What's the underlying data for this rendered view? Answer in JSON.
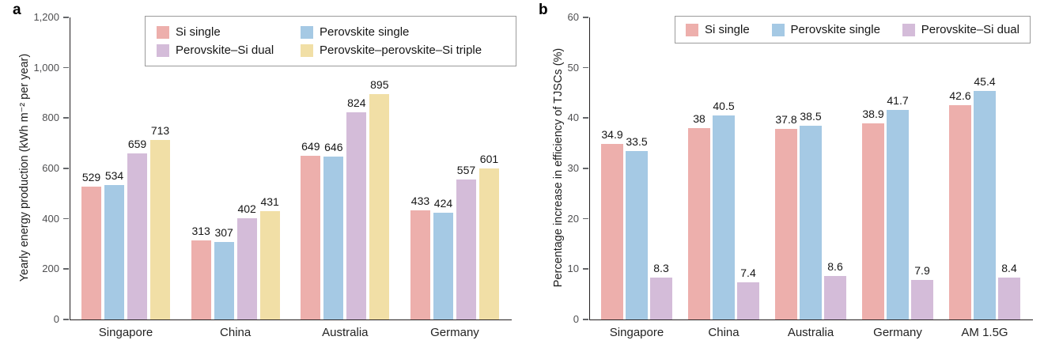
{
  "figure": {
    "panels": [
      {
        "letter": "a"
      },
      {
        "letter": "b"
      }
    ]
  },
  "chart_data": [
    {
      "type": "bar",
      "panel": "a",
      "title": "",
      "ylabel": "Yearly energy production (kWh m⁻² per year)",
      "xlabel": "",
      "ylim": [
        0,
        1200
      ],
      "yticks": [
        "0",
        "200",
        "400",
        "600",
        "800",
        "1,000",
        "1,200"
      ],
      "grid": false,
      "legend_position": "top",
      "legend_columns": 2,
      "categories": [
        "Singapore",
        "China",
        "Australia",
        "Germany"
      ],
      "series": [
        {
          "name": "Si single",
          "color": "#EDAFAC",
          "values": [
            529,
            313,
            649,
            433
          ]
        },
        {
          "name": "Perovskite single",
          "color": "#A5C9E4",
          "values": [
            534,
            307,
            646,
            424
          ]
        },
        {
          "name": "Perovskite–Si dual",
          "color": "#D4BCD9",
          "values": [
            659,
            402,
            824,
            557
          ]
        },
        {
          "name": "Perovskite–perovskite–Si triple",
          "color": "#F1DFA6",
          "values": [
            713,
            431,
            895,
            601
          ]
        }
      ]
    },
    {
      "type": "bar",
      "panel": "b",
      "title": "",
      "ylabel": "Percentage increase in efficiency of TJSCs (%)",
      "xlabel": "",
      "ylim": [
        0,
        60
      ],
      "yticks": [
        "0",
        "10",
        "20",
        "30",
        "40",
        "50",
        "60"
      ],
      "grid": false,
      "legend_position": "top",
      "legend_columns": 3,
      "categories": [
        "Singapore",
        "China",
        "Australia",
        "Germany",
        "AM 1.5G"
      ],
      "series": [
        {
          "name": "Si single",
          "color": "#EDAFAC",
          "values": [
            34.9,
            38,
            37.8,
            38.9,
            42.6
          ]
        },
        {
          "name": "Perovskite single",
          "color": "#A5C9E4",
          "values": [
            33.5,
            40.5,
            38.5,
            41.7,
            45.4
          ]
        },
        {
          "name": "Perovskite–Si dual",
          "color": "#D4BCD9",
          "values": [
            8.3,
            7.4,
            8.6,
            7.9,
            8.4
          ]
        }
      ]
    }
  ],
  "colors": {
    "axis": "#231f20",
    "tick": "#65676a",
    "tick_label": "#4f4f51",
    "value_label": "#161616",
    "legend_border": "#9b9b9b"
  }
}
